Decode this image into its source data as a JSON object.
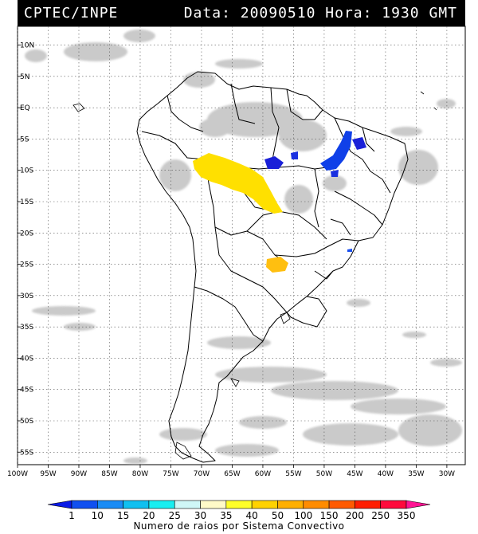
{
  "header": {
    "source": "CPTEC/INPE",
    "datetime": "Data: 20090510 Hora: 1930 GMT"
  },
  "map": {
    "projection": "lat-lon",
    "lon_range": [
      -100,
      -27
    ],
    "lat_range": [
      -57,
      13
    ],
    "lat_labels": [
      "10N",
      "5N",
      "EQ",
      "5S",
      "10S",
      "15S",
      "20S",
      "25S",
      "30S",
      "35S",
      "40S",
      "45S",
      "50S",
      "55S"
    ],
    "lat_values": [
      10,
      5,
      0,
      -5,
      -10,
      -15,
      -20,
      -25,
      -30,
      -35,
      -40,
      -45,
      -50,
      -55
    ],
    "lon_labels": [
      "100W",
      "95W",
      "90W",
      "85W",
      "80W",
      "75W",
      "70W",
      "65W",
      "60W",
      "55W",
      "50W",
      "45W",
      "40W",
      "35W",
      "30W"
    ],
    "lon_values": [
      -100,
      -95,
      -90,
      -85,
      -80,
      -75,
      -70,
      -65,
      -60,
      -55,
      -50,
      -45,
      -40,
      -35,
      -30
    ],
    "land_color": "#ffffff",
    "cloud_color": "#c8c8c8",
    "border_color": "#000000",
    "grid": "dotted"
  },
  "colorbar": {
    "labels": [
      "1",
      "10",
      "15",
      "20",
      "25",
      "30",
      "35",
      "40",
      "50",
      "100",
      "150",
      "200",
      "250",
      "350"
    ],
    "colors": [
      "#0a1ae6",
      "#1050f0",
      "#1a8cf5",
      "#10c0f0",
      "#18eef0",
      "#cff7f7",
      "#fffac8",
      "#ffff28",
      "#ffd200",
      "#ffaf00",
      "#ff8c00",
      "#ff5a00",
      "#ff1e00",
      "#ff0a3c",
      "#ff1493"
    ],
    "caption": "Numero de raios por Sistema Convectivo"
  }
}
